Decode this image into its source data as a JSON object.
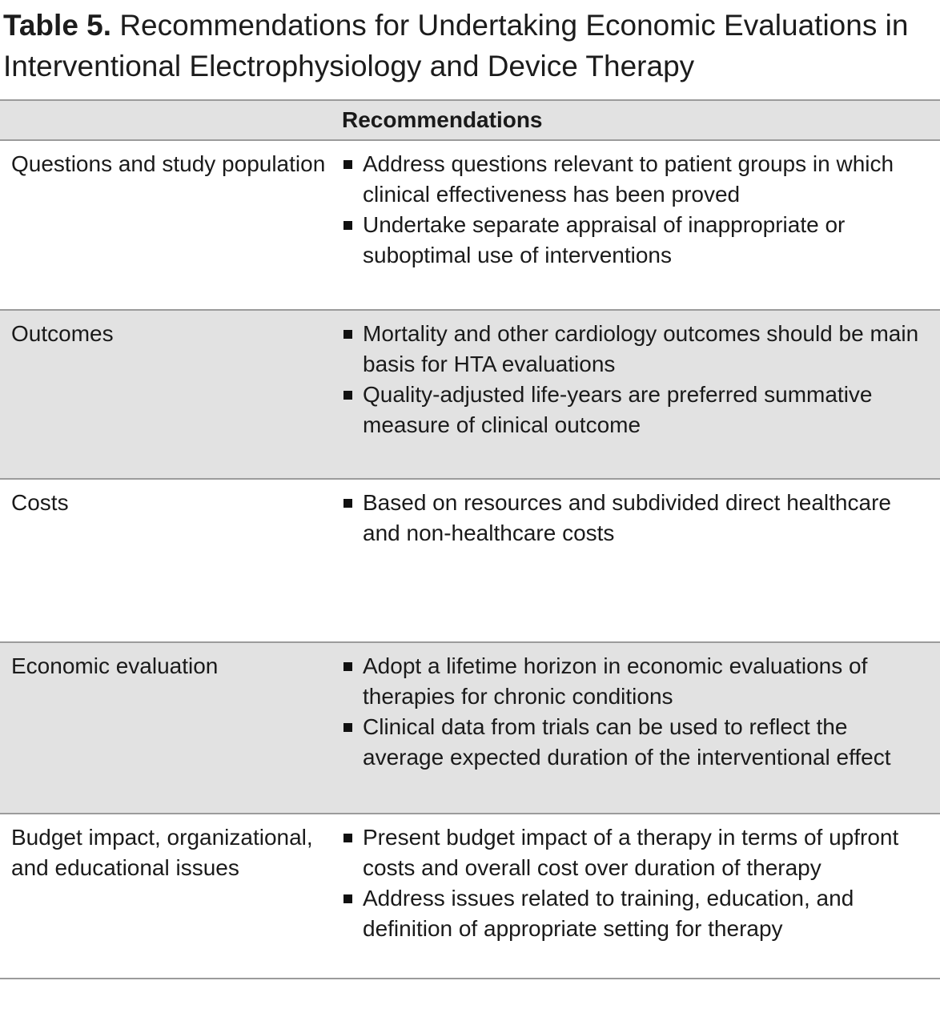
{
  "figure": {
    "title_label": "Table 5.",
    "title_rest": "Recommendations for Undertaking Economic Evaluations in Interventional Electrophysiology and Device Therapy"
  },
  "table": {
    "header": "Recommendations",
    "rows": [
      {
        "category": "Questions and study population",
        "bullets": [
          "Address questions relevant to patient groups in which clinical effectiveness has been proved",
          "Undertake separate appraisal of inappropriate or suboptimal use of interventions"
        ]
      },
      {
        "category": "Outcomes",
        "bullets": [
          "Mortality and other cardiology outcomes should be main basis for HTA evaluations",
          "Quality-adjusted life-years are preferred summative measure of clinical outcome"
        ]
      },
      {
        "category": "Costs",
        "bullets": [
          "Based on resources and subdivided direct healthcare and non-healthcare costs"
        ]
      },
      {
        "category": "Economic evaluation",
        "bullets": [
          "Adopt a lifetime horizon in economic evaluations of therapies for chronic conditions",
          "Clinical data from trials can be used to reflect the average expected duration of the interventional effect"
        ]
      },
      {
        "category": "Budget impact, organizational, and educational issues",
        "bullets": [
          "Present budget impact of a therapy in terms of upfront costs and overall cost over duration of therapy",
          "Address issues related to training, education, and definition of appropriate setting for therapy"
        ]
      }
    ],
    "colors": {
      "shaded_bg": "#e2e2e2",
      "rule": "#9b9b9b",
      "text": "#1a1a1a",
      "bullet": "#111111"
    }
  }
}
